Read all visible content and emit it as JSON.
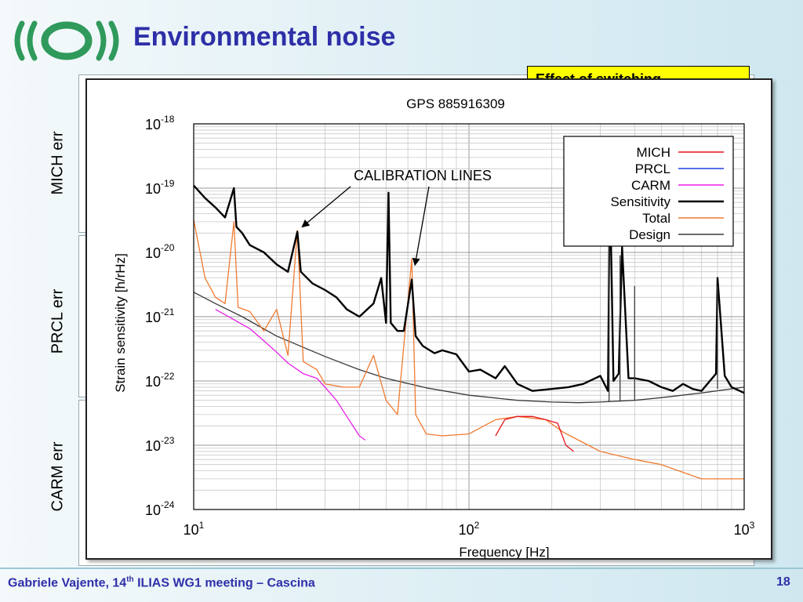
{
  "slide": {
    "title": "Environmental noise",
    "yellow_box_text": "Effect of switching",
    "side_labels": [
      "MICH err",
      "PRCL err",
      "CARM err"
    ],
    "footer": {
      "author": "Gabriele Vajente, 14",
      "sup": "th",
      "event": " ILIAS WG1 meeting – Cascina",
      "page": "18"
    },
    "colors": {
      "title": "#2e2fa8",
      "logo": "#2f9a5b",
      "yellow": "#ffff00"
    }
  },
  "chart_data": {
    "type": "line",
    "title": "GPS 885916309",
    "xlabel": "Frequency [Hz]",
    "ylabel": "Strain sensitivity [h/rHz]",
    "xscale": "log",
    "yscale": "log",
    "xlim": [
      10,
      1000
    ],
    "ylim": [
      1e-24,
      1e-18
    ],
    "x_ticks": [
      {
        "base": "10",
        "exp": "1"
      },
      {
        "base": "10",
        "exp": "2"
      },
      {
        "base": "10",
        "exp": "3"
      }
    ],
    "y_ticks": [
      {
        "base": "10",
        "exp": "-24"
      },
      {
        "base": "10",
        "exp": "-23"
      },
      {
        "base": "10",
        "exp": "-22"
      },
      {
        "base": "10",
        "exp": "-21"
      },
      {
        "base": "10",
        "exp": "-20"
      },
      {
        "base": "10",
        "exp": "-19"
      },
      {
        "base": "10",
        "exp": "-18"
      }
    ],
    "grid": true,
    "legend_position": "top-right",
    "annotation": "CALIBRATION LINES",
    "calibration_lines_hz": [
      23.8,
      62
    ],
    "series": [
      {
        "name": "MICH",
        "color": "#e8141c",
        "points": [
          [
            125,
            1.4e-23
          ],
          [
            135,
            2.5e-23
          ],
          [
            150,
            2.8e-23
          ],
          [
            170,
            2.8e-23
          ],
          [
            190,
            2.5e-23
          ],
          [
            210,
            2.2e-23
          ],
          [
            225,
            1e-23
          ],
          [
            240,
            8e-24
          ]
        ]
      },
      {
        "name": "PRCL",
        "color": "#1e3fe0",
        "points": []
      },
      {
        "name": "CARM",
        "color": "#e81ee8",
        "points": [
          [
            12,
            1.3e-21
          ],
          [
            14,
            9e-22
          ],
          [
            16,
            6.5e-22
          ],
          [
            18,
            4.2e-22
          ],
          [
            20,
            2.8e-22
          ],
          [
            22,
            1.9e-22
          ],
          [
            25,
            1.3e-22
          ],
          [
            28,
            1.1e-22
          ],
          [
            30,
            8e-23
          ],
          [
            33,
            5e-23
          ],
          [
            36,
            2.8e-23
          ],
          [
            40,
            1.4e-23
          ],
          [
            42,
            1.2e-23
          ]
        ]
      },
      {
        "name": "Sensitivity",
        "color": "#000000",
        "points": [
          [
            10,
            1.1e-19
          ],
          [
            11,
            7e-20
          ],
          [
            12,
            5e-20
          ],
          [
            13,
            3.5e-20
          ],
          [
            14,
            1e-19
          ],
          [
            14.3,
            2.5e-20
          ],
          [
            15,
            2e-20
          ],
          [
            16,
            1.3e-20
          ],
          [
            18,
            1e-20
          ],
          [
            20,
            6.5e-21
          ],
          [
            22,
            5e-21
          ],
          [
            23.8,
            2.1e-20
          ],
          [
            24.5,
            5e-21
          ],
          [
            27,
            3.3e-21
          ],
          [
            30,
            2.6e-21
          ],
          [
            33,
            2e-21
          ],
          [
            36,
            1.3e-21
          ],
          [
            40,
            1e-21
          ],
          [
            45,
            1.6e-21
          ],
          [
            48,
            4e-21
          ],
          [
            50,
            8e-22
          ],
          [
            51,
            8.5e-20
          ],
          [
            52,
            8e-22
          ],
          [
            55,
            6e-22
          ],
          [
            58,
            6e-22
          ],
          [
            62,
            3.8e-21
          ],
          [
            64,
            5e-22
          ],
          [
            68,
            3.5e-22
          ],
          [
            75,
            2.7e-22
          ],
          [
            80,
            3e-22
          ],
          [
            90,
            2.6e-22
          ],
          [
            100,
            1.4e-22
          ],
          [
            110,
            1.5e-22
          ],
          [
            125,
            1.1e-22
          ],
          [
            135,
            1.7e-22
          ],
          [
            150,
            9e-23
          ],
          [
            170,
            7e-23
          ],
          [
            200,
            7.5e-23
          ],
          [
            230,
            8e-23
          ],
          [
            260,
            9e-23
          ],
          [
            300,
            1.2e-22
          ],
          [
            320,
            7e-23
          ],
          [
            325,
            1.4e-19
          ],
          [
            335,
            1e-22
          ],
          [
            350,
            1.3e-22
          ],
          [
            360,
            1.2e-20
          ],
          [
            380,
            1.1e-22
          ],
          [
            400,
            1.1e-22
          ],
          [
            450,
            1e-22
          ],
          [
            500,
            8e-23
          ],
          [
            550,
            7e-23
          ],
          [
            600,
            9e-23
          ],
          [
            650,
            7.5e-23
          ],
          [
            700,
            7e-23
          ],
          [
            790,
            1.3e-22
          ],
          [
            800,
            4e-21
          ],
          [
            850,
            1.2e-22
          ],
          [
            900,
            8e-23
          ],
          [
            1000,
            6.5e-23
          ]
        ]
      },
      {
        "name": "Total",
        "color": "#f07a30",
        "points": [
          [
            10,
            3.2e-20
          ],
          [
            11,
            4e-21
          ],
          [
            12,
            2e-21
          ],
          [
            13,
            1.6e-21
          ],
          [
            14,
            3e-20
          ],
          [
            14.5,
            1.4e-21
          ],
          [
            16,
            1.2e-21
          ],
          [
            18,
            6e-22
          ],
          [
            20,
            1.3e-21
          ],
          [
            22,
            2.5e-22
          ],
          [
            23.8,
            2.2e-20
          ],
          [
            25,
            2e-22
          ],
          [
            28,
            1.5e-22
          ],
          [
            30,
            9e-23
          ],
          [
            35,
            8e-23
          ],
          [
            40,
            8e-23
          ],
          [
            45,
            2.5e-22
          ],
          [
            50,
            5e-23
          ],
          [
            55,
            3e-23
          ],
          [
            62,
            8e-21
          ],
          [
            64,
            3e-23
          ],
          [
            70,
            1.5e-23
          ],
          [
            80,
            1.4e-23
          ],
          [
            100,
            1.5e-23
          ],
          [
            125,
            2.5e-23
          ],
          [
            150,
            2.8e-23
          ],
          [
            190,
            2.5e-23
          ],
          [
            220,
            1.6e-23
          ],
          [
            250,
            1.2e-23
          ],
          [
            300,
            8e-24
          ],
          [
            400,
            6e-24
          ],
          [
            500,
            5e-24
          ],
          [
            700,
            3e-24
          ],
          [
            1000,
            3e-24
          ]
        ]
      },
      {
        "name": "Design",
        "color": "#3a3a3a",
        "points": [
          [
            10,
            2.4e-21
          ],
          [
            12,
            1.6e-21
          ],
          [
            15,
            1e-21
          ],
          [
            20,
            5e-22
          ],
          [
            30,
            2.4e-22
          ],
          [
            40,
            1.5e-22
          ],
          [
            50,
            1.1e-22
          ],
          [
            70,
            7.8e-23
          ],
          [
            100,
            6e-23
          ],
          [
            150,
            5e-23
          ],
          [
            200,
            4.7e-23
          ],
          [
            250,
            4.6e-23
          ],
          [
            300,
            4.7e-23
          ],
          [
            400,
            5e-23
          ],
          [
            500,
            5.5e-23
          ],
          [
            700,
            6.5e-23
          ],
          [
            1000,
            8e-23
          ]
        ]
      }
    ],
    "lines": [
      {
        "x": 323,
        "peak": 1.4e-19,
        "base": 4.7e-23,
        "series": "Design"
      },
      {
        "x": 354,
        "peak": 9e-21,
        "base": 4.8e-23,
        "series": "Design"
      },
      {
        "x": 400,
        "peak": 3e-21,
        "base": 5e-23,
        "series": "Design"
      },
      {
        "x": 800,
        "peak": 3e-21,
        "base": 7.5e-23,
        "series": "Design"
      }
    ]
  }
}
